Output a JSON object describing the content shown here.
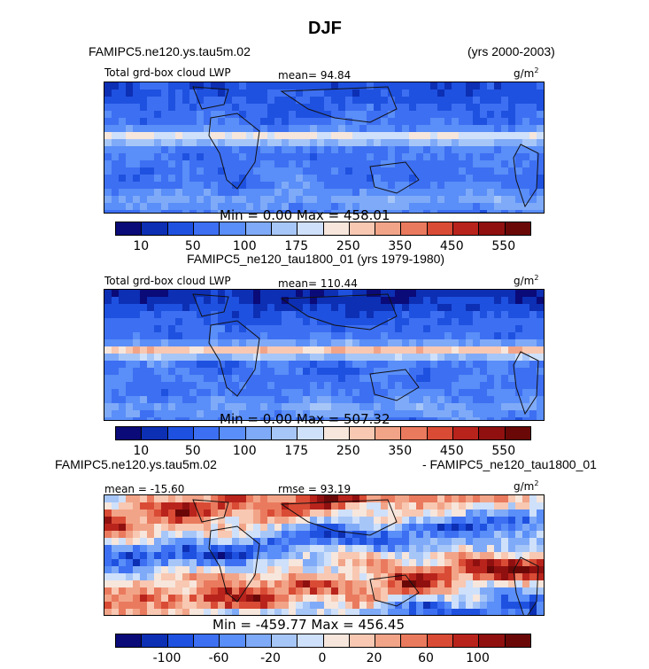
{
  "title": "DJF",
  "panel1": {
    "case_left": "FAMIPC5.ne120.ys.tau5m.02",
    "case_right": "(yrs 2000-2003)",
    "var_label": "Total grd-box cloud LWP",
    "mean": "mean=  94.84",
    "units": "g/m",
    "units_sup": "2",
    "minmax": "Min =    0.00 Max = 458.01",
    "variant": "high_lat_blue"
  },
  "panel2": {
    "case_title": "FAMIPC5_ne120_tau1800_01 (yrs 1979-1980)",
    "var_label": "Total grd-box cloud LWP",
    "mean": "mean= 110.44",
    "units": "g/m",
    "units_sup": "2",
    "minmax": "Min =    0.00 Max = 507.32",
    "variant": "tropical_band"
  },
  "panel3": {
    "case_left": "FAMIPC5.ne120.ys.tau5m.02",
    "case_right": "- FAMIPC5_ne120_tau1800_01",
    "mean": "mean = -15.60",
    "rmse": "rmse =   93.19",
    "units": "g/m",
    "units_sup": "2",
    "minmax": "Min = -459.77 Max = 456.45",
    "variant": "difference"
  },
  "chart_data": [
    {
      "type": "heatmap",
      "title": "Total grd-box cloud LWP",
      "case": "FAMIPC5.ne120.ys.tau5m.02",
      "years": "2000-2003",
      "units": "g/m2",
      "mean": 94.84,
      "min": 0.0,
      "max": 458.01,
      "colorbar": {
        "levels": [
          10,
          25,
          50,
          75,
          100,
          125,
          175,
          200,
          250,
          300,
          350,
          400,
          450,
          500,
          550
        ],
        "tick_labels": [
          "10",
          "50",
          "100",
          "175",
          "250",
          "350",
          "450",
          "550"
        ],
        "colors": [
          "#0a0a78",
          "#0c2fb4",
          "#1f51e0",
          "#3d6ff2",
          "#5a8ef8",
          "#7faaf8",
          "#a7c6f8",
          "#cfe0fa",
          "#f7e6dc",
          "#f8c8b2",
          "#f2a488",
          "#ea7a5e",
          "#d94b35",
          "#b8241c",
          "#901010",
          "#6a0808"
        ]
      }
    },
    {
      "type": "heatmap",
      "title": "Total grd-box cloud LWP",
      "case": "FAMIPC5_ne120_tau1800_01",
      "years": "1979-1980",
      "units": "g/m2",
      "mean": 110.44,
      "min": 0.0,
      "max": 507.32,
      "colorbar": {
        "levels": [
          10,
          25,
          50,
          75,
          100,
          125,
          175,
          200,
          250,
          300,
          350,
          400,
          450,
          500,
          550
        ],
        "tick_labels": [
          "10",
          "50",
          "100",
          "175",
          "250",
          "350",
          "450",
          "550"
        ],
        "colors": [
          "#0a0a78",
          "#0c2fb4",
          "#1f51e0",
          "#3d6ff2",
          "#5a8ef8",
          "#7faaf8",
          "#a7c6f8",
          "#cfe0fa",
          "#f7e6dc",
          "#f8c8b2",
          "#f2a488",
          "#ea7a5e",
          "#d94b35",
          "#b8241c",
          "#901010",
          "#6a0808"
        ]
      }
    },
    {
      "type": "heatmap",
      "title": "FAMIPC5.ne120.ys.tau5m.02 - FAMIPC5_ne120_tau1800_01",
      "units": "g/m2",
      "mean": -15.6,
      "rmse": 93.19,
      "min": -459.77,
      "max": 456.45,
      "colorbar": {
        "levels": [
          -120,
          -100,
          -80,
          -60,
          -40,
          -20,
          -10,
          0,
          10,
          20,
          40,
          60,
          80,
          100,
          120
        ],
        "tick_labels": [
          "-100",
          "-60",
          "-20",
          "0",
          "20",
          "60",
          "100"
        ],
        "colors": [
          "#0a0a78",
          "#0c2fb4",
          "#1f51e0",
          "#3d6ff2",
          "#5a8ef8",
          "#7faaf8",
          "#a7c6f8",
          "#cfe0fa",
          "#f7e6dc",
          "#f8c8b2",
          "#f2a488",
          "#ea7a5e",
          "#d94b35",
          "#b8241c",
          "#901010",
          "#6a0808"
        ]
      }
    }
  ]
}
